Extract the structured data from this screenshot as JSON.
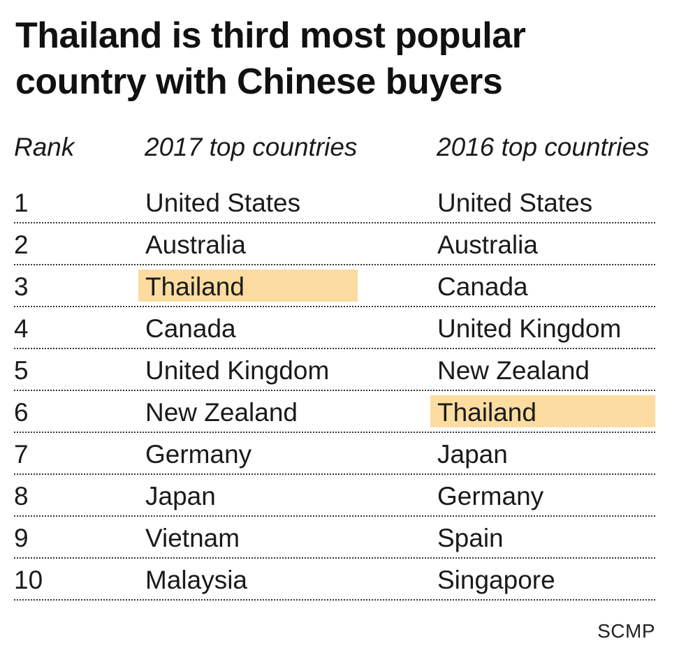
{
  "title": "Thailand is third most popular country with Chinese buyers",
  "source": "SCMP",
  "colors": {
    "highlight": "#fcdca0",
    "text": "#1a1a1a",
    "title": "#111111"
  },
  "chart_data": {
    "type": "table",
    "title": "Thailand is third most popular country with Chinese buyers",
    "columns": [
      "Rank",
      "2017 top countries",
      "2016 top countries"
    ],
    "rows": [
      {
        "rank": "1",
        "y2017": "United States",
        "y2016": "United States"
      },
      {
        "rank": "2",
        "y2017": "Australia",
        "y2016": "Australia"
      },
      {
        "rank": "3",
        "y2017": "Thailand",
        "y2016": "Canada"
      },
      {
        "rank": "4",
        "y2017": "Canada",
        "y2016": "United Kingdom"
      },
      {
        "rank": "5",
        "y2017": "United Kingdom",
        "y2016": "New Zealand"
      },
      {
        "rank": "6",
        "y2017": "New Zealand",
        "y2016": "Thailand"
      },
      {
        "rank": "7",
        "y2017": "Germany",
        "y2016": "Japan"
      },
      {
        "rank": "8",
        "y2017": "Japan",
        "y2016": "Germany"
      },
      {
        "rank": "9",
        "y2017": "Vietnam",
        "y2016": "Spain"
      },
      {
        "rank": "10",
        "y2017": "Malaysia",
        "y2016": "Singapore"
      }
    ],
    "highlighted_value": "Thailand"
  }
}
